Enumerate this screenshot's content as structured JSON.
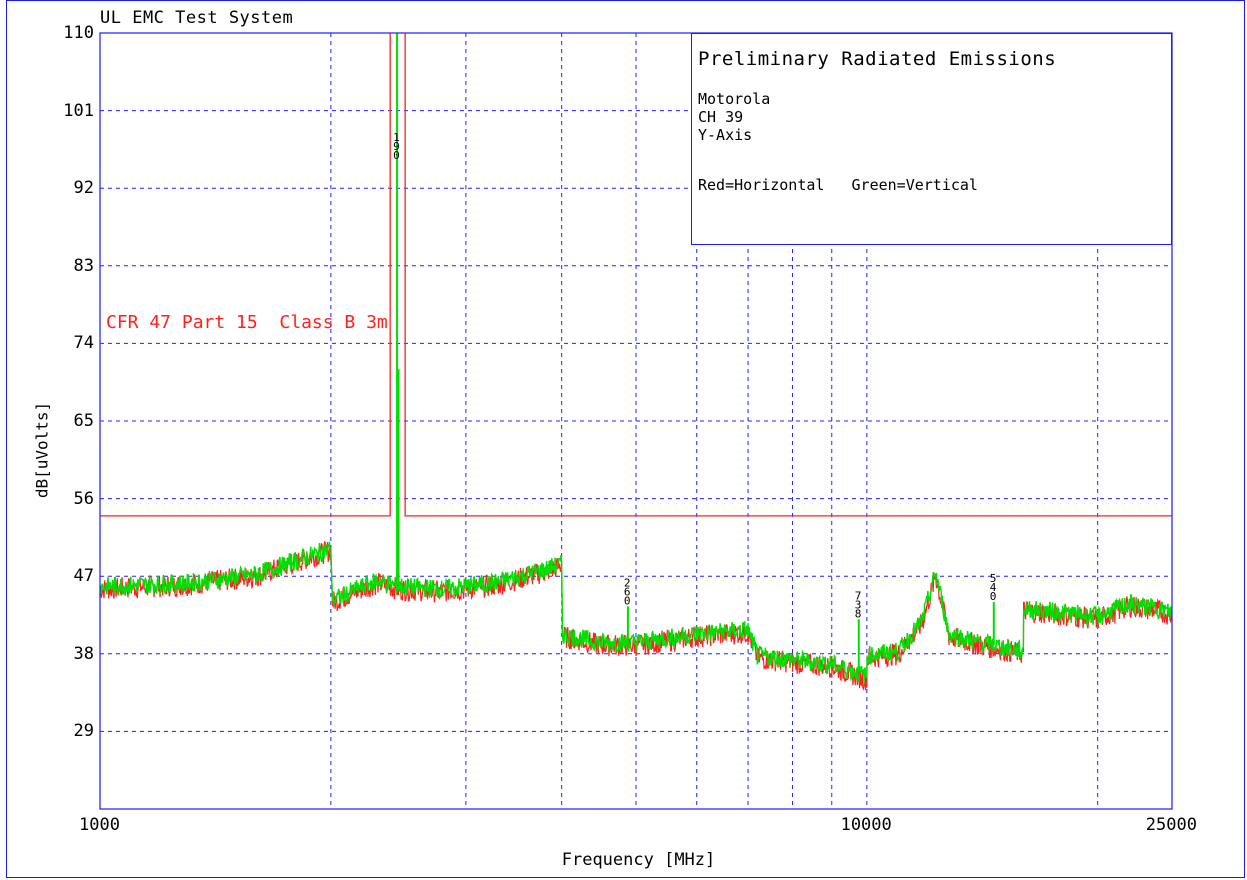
{
  "system_title": "UL EMC Test System",
  "legend": {
    "title": "Preliminary Radiated Emissions",
    "lines": [
      "Motorola",
      "CH 39",
      "Y-Axis"
    ],
    "colors_note": "Red=Horizontal   Green=Vertical"
  },
  "limit_label": "CFR 47 Part 15  Class B 3m",
  "colors": {
    "frame": "#1a1aff",
    "grid": "#2020ff",
    "horizontal": "#ff2020",
    "vertical": "#00e000",
    "limit": "#ff2020"
  },
  "chart_data": {
    "type": "line",
    "title": "Preliminary Radiated Emissions",
    "xlabel": "Frequency [MHz]",
    "ylabel": "dB[uVolts]",
    "x_scale": "log",
    "xlim": [
      1000,
      25000
    ],
    "ylim": [
      20,
      110
    ],
    "x_tick_labels": [
      "1000",
      "10000",
      "25000"
    ],
    "y_ticks": [
      29,
      38,
      47,
      56,
      65,
      74,
      83,
      92,
      101,
      110
    ],
    "grid": true,
    "legend_placement": "top-right",
    "limit_line": {
      "name": "CFR 47 Part 15  Class B 3m",
      "level": 54,
      "notch": {
        "from": 2390,
        "to": 2500,
        "level": 110
      }
    },
    "series": [
      {
        "name": "Horizontal",
        "points": [
          [
            1000,
            45.5
          ],
          [
            1300,
            46.0
          ],
          [
            1600,
            47.0
          ],
          [
            2000,
            50.0
          ],
          [
            2010,
            44.0
          ],
          [
            2200,
            45.5
          ],
          [
            2300,
            46.2
          ],
          [
            2450,
            45.5
          ],
          [
            2800,
            45.2
          ],
          [
            3300,
            46.0
          ],
          [
            3800,
            47.5
          ],
          [
            4000,
            48.2
          ],
          [
            4010,
            40.0
          ],
          [
            4500,
            39.0
          ],
          [
            5000,
            39.0
          ],
          [
            6000,
            40.0
          ],
          [
            7000,
            40.5
          ],
          [
            7200,
            37.5
          ],
          [
            8000,
            37.0
          ],
          [
            9000,
            36.5
          ],
          [
            10000,
            35.0
          ],
          [
            10010,
            37.5
          ],
          [
            11000,
            38.0
          ],
          [
            11800,
            41.5
          ],
          [
            12300,
            47.0
          ],
          [
            12800,
            40.0
          ],
          [
            14000,
            39.0
          ],
          [
            15000,
            38.5
          ],
          [
            16000,
            38.0
          ],
          [
            16010,
            43.0
          ],
          [
            18000,
            42.5
          ],
          [
            20000,
            42.0
          ],
          [
            22000,
            43.5
          ],
          [
            24000,
            43.0
          ],
          [
            25000,
            42.5
          ]
        ]
      },
      {
        "name": "Vertical",
        "points": [
          [
            1000,
            45.8
          ],
          [
            1300,
            46.2
          ],
          [
            1600,
            47.2
          ],
          [
            2000,
            50.2
          ],
          [
            2010,
            44.2
          ],
          [
            2200,
            45.8
          ],
          [
            2300,
            46.5
          ],
          [
            2450,
            45.8
          ],
          [
            2800,
            45.5
          ],
          [
            3300,
            46.3
          ],
          [
            3800,
            47.8
          ],
          [
            4000,
            48.4
          ],
          [
            4010,
            40.2
          ],
          [
            4500,
            39.3
          ],
          [
            5000,
            39.3
          ],
          [
            6000,
            40.3
          ],
          [
            7000,
            40.8
          ],
          [
            7200,
            37.8
          ],
          [
            8000,
            37.3
          ],
          [
            9000,
            36.8
          ],
          [
            10000,
            35.4
          ],
          [
            10010,
            37.8
          ],
          [
            11000,
            38.3
          ],
          [
            11800,
            41.8
          ],
          [
            12300,
            47.4
          ],
          [
            12800,
            40.3
          ],
          [
            14000,
            39.3
          ],
          [
            15000,
            38.8
          ],
          [
            16000,
            38.3
          ],
          [
            16010,
            43.2
          ],
          [
            18000,
            42.8
          ],
          [
            20000,
            42.3
          ],
          [
            22000,
            43.8
          ],
          [
            24000,
            43.2
          ],
          [
            25000,
            42.8
          ]
        ]
      }
    ],
    "peaks": [
      {
        "freq": 2440,
        "level": 110,
        "labels": [
          "1",
          "9",
          "0"
        ]
      },
      {
        "freq": 4880,
        "level": 43.5,
        "labels": [
          "2",
          "6",
          "0"
        ]
      },
      {
        "freq": 9760,
        "level": 42,
        "labels": [
          "7",
          "3",
          "8"
        ]
      },
      {
        "freq": 14640,
        "level": 44,
        "labels": [
          "5",
          "4",
          "0"
        ]
      }
    ]
  }
}
